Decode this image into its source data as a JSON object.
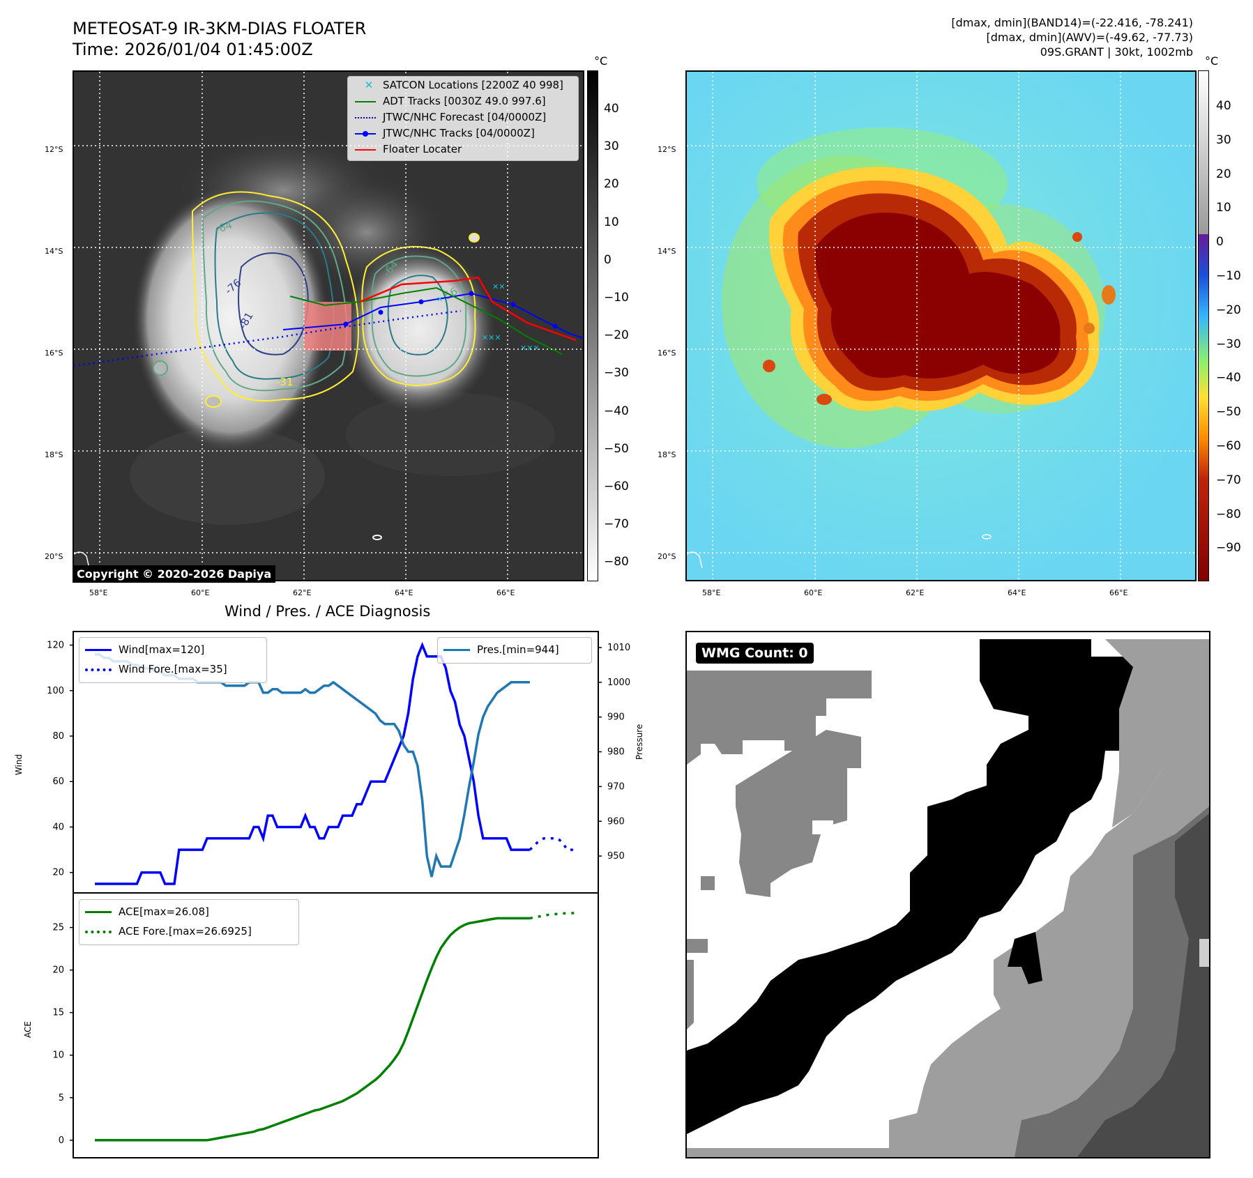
{
  "header": {
    "title_line1": "METEOSAT-9 IR-3KM-DIAS FLOATER",
    "title_line2": "Time: 2026/01/04 01:45:00Z",
    "stats_line1": "[dmax, dmin](BAND14)=(-22.416, -78.241)",
    "stats_line2": "[dmax, dmin](AWV)=(-49.62, -77.73)",
    "stats_line3": "09S.GRANT | 30kt, 1002mb"
  },
  "map": {
    "lat_labels": [
      "12°S",
      "14°S",
      "16°S",
      "18°S",
      "20°S"
    ],
    "lon_labels": [
      "58°E",
      "60°E",
      "62°E",
      "64°E",
      "66°E"
    ],
    "contour_labels": [
      "-64",
      "-76",
      "-81",
      "-31",
      "-64",
      "-56"
    ],
    "copyright": "Copyright © 2020-2026 Dapiya",
    "legend": [
      {
        "label": "SATCON Locations [2200Z 40 998]",
        "color": "#17becf",
        "style": "x"
      },
      {
        "label": "ADT Tracks [0030Z 49.0 997.6]",
        "color": "#008000",
        "style": "solid"
      },
      {
        "label": "JTWC/NHC Forecast [04/0000Z]",
        "color": "#0000ff",
        "style": "dotted"
      },
      {
        "label": "JTWC/NHC Tracks [04/0000Z]",
        "color": "#0000ff",
        "style": "marker"
      },
      {
        "label": "Floater Locater",
        "color": "#ff0000",
        "style": "solid"
      }
    ]
  },
  "colorbars": {
    "unit": "°C",
    "ir_ticks": [
      "40",
      "30",
      "20",
      "10",
      "0",
      "−10",
      "−20",
      "−30",
      "−40",
      "−50",
      "−60",
      "−70",
      "−80"
    ],
    "enh_ticks": [
      "40",
      "30",
      "20",
      "10",
      "0",
      "−10",
      "−20",
      "−30",
      "−40",
      "−50",
      "−60",
      "−70",
      "−80",
      "−90"
    ]
  },
  "diagnosis": {
    "title": "Wind / Pres. / ACE Diagnosis",
    "wind_ylabel": "Wind",
    "pres_ylabel": "Pressure",
    "ace_ylabel": "ACE",
    "wind_legend": [
      "Wind[max=120]",
      "Wind Fore.[max=35]"
    ],
    "pres_legend": [
      "Pres.[min=944]"
    ],
    "ace_legend": [
      "ACE[max=26.08]",
      "ACE Fore.[max=26.6925]"
    ]
  },
  "wmg": {
    "label": "WMG Count: 0"
  },
  "colors": {
    "wind": "#0000ff",
    "pressure": "#1f77b4",
    "ace": "#008000"
  },
  "chart_data": [
    {
      "type": "line",
      "ylabel": "Wind",
      "ylim": [
        15,
        122
      ],
      "y_ticks": [
        20,
        40,
        60,
        80,
        100,
        120
      ],
      "series": [
        {
          "name": "Wind[max=120]",
          "values": [
            15,
            15,
            15,
            15,
            15,
            15,
            15,
            15,
            15,
            15,
            20,
            20,
            20,
            20,
            20,
            15,
            15,
            15,
            30,
            30,
            30,
            30,
            30,
            30,
            35,
            35,
            35,
            35,
            35,
            35,
            35,
            35,
            35,
            35,
            40,
            40,
            35,
            45,
            45,
            40,
            40,
            40,
            40,
            40,
            40,
            45,
            40,
            40,
            35,
            35,
            40,
            40,
            40,
            45,
            45,
            45,
            50,
            50,
            55,
            60,
            60,
            60,
            60,
            65,
            70,
            75,
            80,
            90,
            105,
            115,
            120,
            115,
            115,
            115,
            115,
            110,
            100,
            95,
            85,
            80,
            70,
            60,
            45,
            35,
            35,
            35,
            35,
            35,
            35,
            30,
            30,
            30,
            30,
            30
          ]
        },
        {
          "name": "Wind Fore.[max=35]",
          "values": [
            null,
            null,
            null,
            null,
            null,
            null,
            null,
            null,
            null,
            null,
            null,
            null,
            null,
            null,
            null,
            null,
            null,
            null,
            null,
            null,
            null,
            null,
            null,
            null,
            null,
            null,
            null,
            null,
            null,
            null,
            null,
            null,
            null,
            null,
            null,
            null,
            null,
            null,
            null,
            null,
            null,
            null,
            null,
            null,
            null,
            null,
            null,
            null,
            null,
            null,
            null,
            null,
            null,
            null,
            null,
            null,
            null,
            null,
            null,
            null,
            null,
            null,
            null,
            null,
            null,
            null,
            null,
            null,
            null,
            null,
            null,
            null,
            null,
            null,
            null,
            null,
            null,
            null,
            null,
            null,
            null,
            null,
            null,
            null,
            null,
            null,
            null,
            null,
            null,
            null,
            null,
            null,
            null,
            30,
            32,
            34,
            35,
            35,
            35,
            35,
            33,
            30,
            30,
            28
          ]
        }
      ]
    },
    {
      "type": "line",
      "ylabel": "Pressure",
      "ylim": [
        942,
        1012
      ],
      "y_ticks": [
        950,
        960,
        970,
        980,
        990,
        1000,
        1010
      ],
      "series": [
        {
          "name": "Pres.[min=944]",
          "values": [
            1008,
            1008,
            1007,
            1007,
            1006,
            1006,
            1006,
            1006,
            1005,
            1005,
            1004,
            1004,
            1004,
            1003,
            1003,
            1002,
            1002,
            1002,
            1001,
            1001,
            1001,
            1001,
            1000,
            1000,
            1000,
            1000,
            1000,
            1000,
            999,
            999,
            999,
            999,
            999,
            1000,
            1000,
            1000,
            997,
            997,
            998,
            998,
            997,
            997,
            997,
            997,
            997,
            998,
            997,
            997,
            998,
            999,
            999,
            1000,
            999,
            998,
            997,
            996,
            995,
            994,
            993,
            992,
            991,
            989,
            988,
            988,
            988,
            986,
            982,
            980,
            980,
            976,
            966,
            950,
            944,
            950,
            947,
            947,
            947,
            951,
            955,
            962,
            970,
            977,
            985,
            990,
            993,
            995,
            997,
            998,
            999,
            1000,
            1000,
            1000,
            1000,
            1000
          ]
        }
      ]
    },
    {
      "type": "line",
      "ylabel": "ACE",
      "ylim": [
        -1,
        28
      ],
      "y_ticks": [
        0,
        5,
        10,
        15,
        20,
        25
      ],
      "series": [
        {
          "name": "ACE[max=26.08]",
          "values": [
            0,
            0,
            0,
            0,
            0,
            0,
            0,
            0,
            0,
            0,
            0,
            0,
            0,
            0,
            0,
            0,
            0,
            0,
            0,
            0,
            0,
            0,
            0,
            0,
            0,
            0.1,
            0.2,
            0.3,
            0.4,
            0.5,
            0.6,
            0.7,
            0.8,
            0.9,
            1.0,
            1.2,
            1.3,
            1.5,
            1.7,
            1.9,
            2.1,
            2.3,
            2.5,
            2.7,
            2.9,
            3.1,
            3.3,
            3.5,
            3.6,
            3.8,
            4.0,
            4.2,
            4.4,
            4.6,
            4.9,
            5.2,
            5.5,
            5.9,
            6.3,
            6.7,
            7.1,
            7.6,
            8.2,
            8.8,
            9.5,
            10.3,
            11.4,
            12.8,
            14.3,
            15.8,
            17.3,
            18.8,
            20.2,
            21.5,
            22.6,
            23.4,
            24.1,
            24.6,
            25.0,
            25.3,
            25.5,
            25.6,
            25.7,
            25.8,
            25.9,
            26.0,
            26.08,
            26.08,
            26.08,
            26.08,
            26.08,
            26.08,
            26.08,
            26.08
          ]
        },
        {
          "name": "ACE Fore.[max=26.6925]",
          "values": [
            null,
            null,
            null,
            null,
            null,
            null,
            null,
            null,
            null,
            null,
            null,
            null,
            null,
            null,
            null,
            null,
            null,
            null,
            null,
            null,
            null,
            null,
            null,
            null,
            null,
            null,
            null,
            null,
            null,
            null,
            null,
            null,
            null,
            null,
            null,
            null,
            null,
            null,
            null,
            null,
            null,
            null,
            null,
            null,
            null,
            null,
            null,
            null,
            null,
            null,
            null,
            null,
            null,
            null,
            null,
            null,
            null,
            null,
            null,
            null,
            null,
            null,
            null,
            null,
            null,
            null,
            null,
            null,
            null,
            null,
            null,
            null,
            null,
            null,
            null,
            null,
            null,
            null,
            null,
            null,
            null,
            null,
            null,
            null,
            null,
            null,
            null,
            null,
            null,
            null,
            null,
            null,
            null,
            26.08,
            26.2,
            26.3,
            26.4,
            26.5,
            26.55,
            26.6,
            26.65,
            26.69,
            26.69,
            26.69
          ]
        }
      ]
    }
  ]
}
